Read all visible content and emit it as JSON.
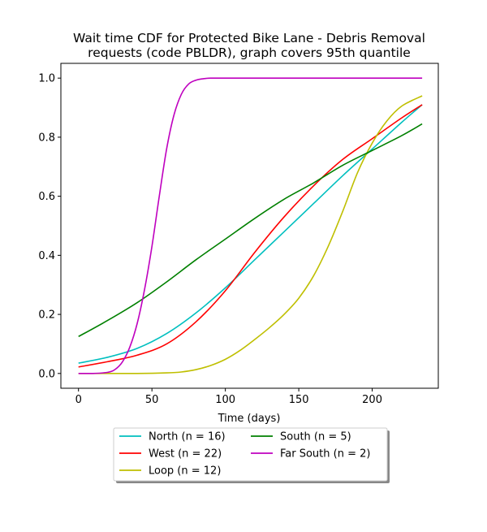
{
  "chart_data": {
    "type": "line",
    "title_lines": [
      "Wait time CDF for Protected Bike Lane - Debris Removal",
      "requests (code PBLDR), graph covers 95th quantile"
    ],
    "xlabel": "Time (days)",
    "ylabel": "",
    "xlim": [
      -12,
      245
    ],
    "ylim": [
      -0.05,
      1.05
    ],
    "xticks": [
      0,
      50,
      100,
      150,
      200
    ],
    "yticks": [
      0.0,
      0.2,
      0.4,
      0.6,
      0.8,
      1.0
    ],
    "ytick_labels": [
      "0.0",
      "0.2",
      "0.4",
      "0.6",
      "0.8",
      "1.0"
    ],
    "grid": false,
    "legend_placement": "below plot, two columns",
    "series": [
      {
        "name": "North (n = 16)",
        "color": "#00bfbf",
        "x": [
          0,
          20,
          40,
          60,
          80,
          100,
          120,
          140,
          160,
          180,
          200,
          220,
          234
        ],
        "y": [
          0.035,
          0.055,
          0.085,
          0.135,
          0.205,
          0.29,
          0.385,
          0.48,
          0.575,
          0.67,
          0.76,
          0.85,
          0.91
        ]
      },
      {
        "name": "West (n = 22)",
        "color": "#ff0000",
        "x": [
          0,
          20,
          40,
          60,
          80,
          100,
          120,
          140,
          160,
          180,
          200,
          220,
          234
        ],
        "y": [
          0.022,
          0.04,
          0.062,
          0.1,
          0.175,
          0.28,
          0.41,
          0.53,
          0.635,
          0.725,
          0.795,
          0.865,
          0.91
        ]
      },
      {
        "name": "Loop (n = 12)",
        "color": "#bfbf00",
        "x": [
          0,
          20,
          40,
          60,
          70,
          80,
          90,
          100,
          110,
          120,
          130,
          140,
          150,
          160,
          170,
          180,
          190,
          200,
          210,
          220,
          234
        ],
        "y": [
          0.0,
          0.0,
          0.0,
          0.002,
          0.005,
          0.013,
          0.027,
          0.048,
          0.078,
          0.115,
          0.155,
          0.2,
          0.255,
          0.33,
          0.43,
          0.55,
          0.68,
          0.78,
          0.855,
          0.905,
          0.94
        ]
      },
      {
        "name": "South (n = 5)",
        "color": "#008000",
        "x": [
          0,
          20,
          40,
          60,
          80,
          100,
          120,
          140,
          160,
          180,
          200,
          220,
          234
        ],
        "y": [
          0.125,
          0.18,
          0.24,
          0.31,
          0.385,
          0.455,
          0.525,
          0.59,
          0.645,
          0.705,
          0.755,
          0.805,
          0.845
        ]
      },
      {
        "name": "Far South (n = 2)",
        "color": "#bf00bf",
        "x": [
          0,
          10,
          20,
          25,
          30,
          35,
          40,
          45,
          50,
          55,
          60,
          65,
          70,
          75,
          80,
          85,
          90,
          100,
          120,
          234
        ],
        "y": [
          0.0,
          0.0,
          0.004,
          0.014,
          0.04,
          0.09,
          0.17,
          0.285,
          0.43,
          0.6,
          0.76,
          0.875,
          0.945,
          0.98,
          0.993,
          0.998,
          1.0,
          1.0,
          1.0,
          1.0
        ]
      }
    ]
  }
}
